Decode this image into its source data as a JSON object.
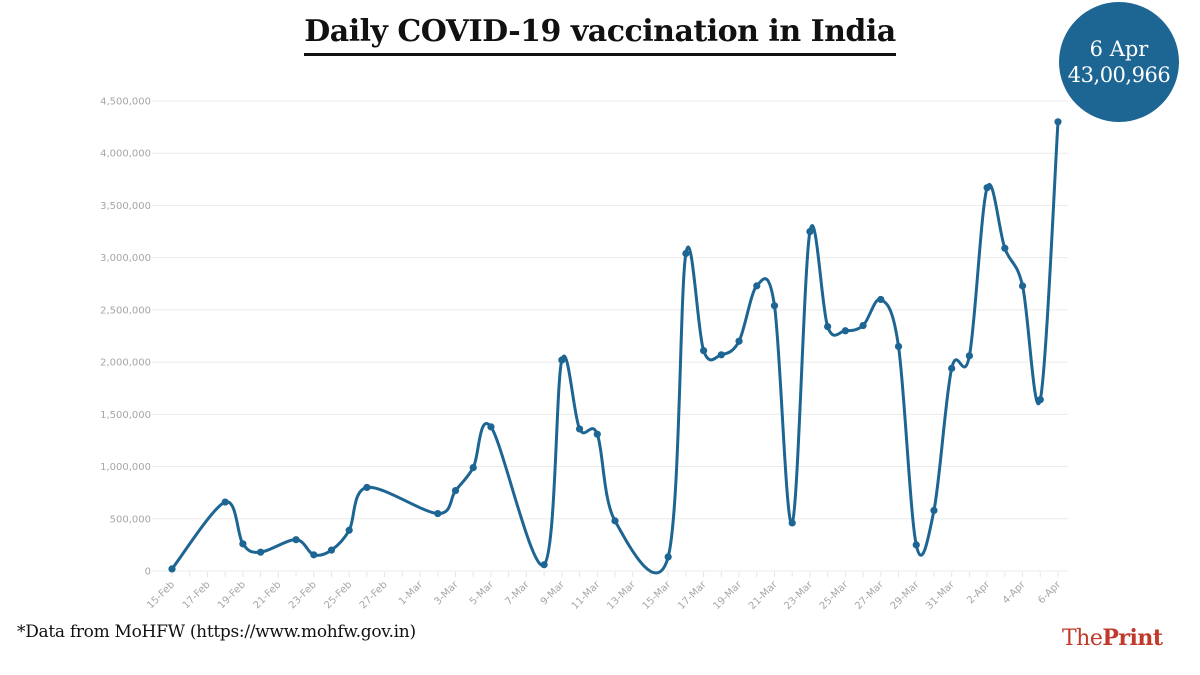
{
  "title": "Daily COVID-19 vaccination in India",
  "callout": {
    "date": "6 Apr",
    "value": "43,00,966"
  },
  "footnote": "*Data from MoHFW (https://www.mohfw.gov.in)",
  "logo": {
    "part1": "The",
    "part2": "Print"
  },
  "colors": {
    "line": "#1d6592",
    "badge": "#1d6592",
    "logo": "#c0392b",
    "grid": "#ebebeb",
    "tick_label": "#a6a6a6"
  },
  "chart_data": {
    "type": "line",
    "title": "Daily COVID-19 vaccination in India",
    "xlabel": "",
    "ylabel": "",
    "ylim": [
      0,
      4500000
    ],
    "grid": true,
    "y_ticks": [
      0,
      500000,
      1000000,
      1500000,
      2000000,
      2500000,
      3000000,
      3500000,
      4000000,
      4500000
    ],
    "y_tick_labels": [
      "0",
      "500,000",
      "1,000,000",
      "1,500,000",
      "2,000,000",
      "2,500,000",
      "3,000,000",
      "3,500,000",
      "4,000,000",
      "4,500,000"
    ],
    "x_start": "15-Feb",
    "x_days_total": 50,
    "x_tick_labels": [
      "15-Feb",
      "17-Feb",
      "19-Feb",
      "21-Feb",
      "23-Feb",
      "25-Feb",
      "27-Feb",
      "1-Mar",
      "3-Mar",
      "5-Mar",
      "7-Mar",
      "9-Mar",
      "11-Mar",
      "13-Mar",
      "15-Mar",
      "17-Mar",
      "19-Mar",
      "21-Mar",
      "23-Mar",
      "25-Mar",
      "27-Mar",
      "29-Mar",
      "31-Mar",
      "2-Apr",
      "4-Apr",
      "6-Apr"
    ],
    "series": [
      {
        "name": "Daily vaccinations",
        "points": [
          {
            "day": 0,
            "date": "15-Feb",
            "value": 20000
          },
          {
            "day": 3,
            "date": "18-Feb",
            "value": 660000
          },
          {
            "day": 4,
            "date": "19-Feb",
            "value": 260000
          },
          {
            "day": 5,
            "date": "20-Feb",
            "value": 180000
          },
          {
            "day": 7,
            "date": "22-Feb",
            "value": 300000
          },
          {
            "day": 8,
            "date": "23-Feb",
            "value": 155000
          },
          {
            "day": 9,
            "date": "24-Feb",
            "value": 200000
          },
          {
            "day": 10,
            "date": "25-Feb",
            "value": 390000
          },
          {
            "day": 11,
            "date": "26-Feb",
            "value": 800000
          },
          {
            "day": 15,
            "date": "2-Mar",
            "value": 550000
          },
          {
            "day": 16,
            "date": "3-Mar",
            "value": 770000
          },
          {
            "day": 17,
            "date": "4-Mar",
            "value": 990000
          },
          {
            "day": 18,
            "date": "5-Mar",
            "value": 1380000
          },
          {
            "day": 21,
            "date": "8-Mar",
            "value": 60000
          },
          {
            "day": 22,
            "date": "9-Mar",
            "value": 2020000
          },
          {
            "day": 23,
            "date": "10-Mar",
            "value": 1360000
          },
          {
            "day": 24,
            "date": "11-Mar",
            "value": 1310000
          },
          {
            "day": 25,
            "date": "12-Mar",
            "value": 480000
          },
          {
            "day": 28,
            "date": "15-Mar",
            "value": 135000
          },
          {
            "day": 29,
            "date": "16-Mar",
            "value": 3040000
          },
          {
            "day": 30,
            "date": "17-Mar",
            "value": 2110000
          },
          {
            "day": 31,
            "date": "18-Mar",
            "value": 2070000
          },
          {
            "day": 32,
            "date": "19-Mar",
            "value": 2200000
          },
          {
            "day": 33,
            "date": "20-Mar",
            "value": 2730000
          },
          {
            "day": 34,
            "date": "21-Mar",
            "value": 2540000
          },
          {
            "day": 35,
            "date": "22-Mar",
            "value": 460000
          },
          {
            "day": 36,
            "date": "23-Mar",
            "value": 3250000
          },
          {
            "day": 37,
            "date": "24-Mar",
            "value": 2340000
          },
          {
            "day": 38,
            "date": "25-Mar",
            "value": 2300000
          },
          {
            "day": 39,
            "date": "26-Mar",
            "value": 2350000
          },
          {
            "day": 40,
            "date": "27-Mar",
            "value": 2600000
          },
          {
            "day": 41,
            "date": "28-Mar",
            "value": 2150000
          },
          {
            "day": 42,
            "date": "29-Mar",
            "value": 250000
          },
          {
            "day": 43,
            "date": "30-Mar",
            "value": 580000
          },
          {
            "day": 44,
            "date": "31-Mar",
            "value": 1940000
          },
          {
            "day": 45,
            "date": "1-Apr",
            "value": 2060000
          },
          {
            "day": 46,
            "date": "2-Apr",
            "value": 3670000
          },
          {
            "day": 47,
            "date": "3-Apr",
            "value": 3090000
          },
          {
            "day": 48,
            "date": "4-Apr",
            "value": 2730000
          },
          {
            "day": 49,
            "date": "5-Apr",
            "value": 1640000
          },
          {
            "day": 50,
            "date": "6-Apr",
            "value": 4300966
          }
        ]
      }
    ]
  }
}
